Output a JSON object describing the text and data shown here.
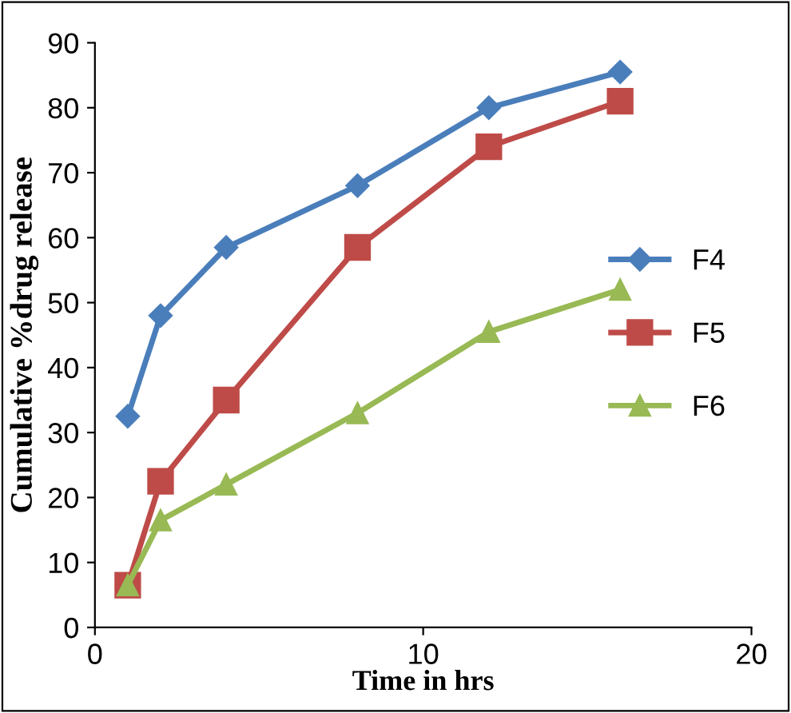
{
  "chart_data": {
    "type": "line",
    "xlabel": "Time in hrs",
    "ylabel": "Cumulative %drug release",
    "x": [
      1,
      2,
      4,
      8,
      12,
      16
    ],
    "series": [
      {
        "name": "F4",
        "color": "#4a7ebb",
        "marker": "diamond",
        "values": [
          32.5,
          48,
          58.5,
          68,
          80,
          85.5
        ]
      },
      {
        "name": "F5",
        "color": "#be4b48",
        "marker": "square",
        "values": [
          6.5,
          22.5,
          35,
          58.5,
          74,
          81
        ]
      },
      {
        "name": "F6",
        "color": "#98b954",
        "marker": "triangle",
        "values": [
          6.5,
          16.5,
          22,
          33,
          45.5,
          52
        ]
      }
    ],
    "xlim": [
      0,
      20
    ],
    "xticks": [
      0,
      10,
      20
    ],
    "ylim": [
      0,
      90
    ],
    "yticks": [
      0,
      10,
      20,
      30,
      40,
      50,
      60,
      70,
      80,
      90
    ],
    "grid": false,
    "legend": "right",
    "line_style": "solid"
  }
}
